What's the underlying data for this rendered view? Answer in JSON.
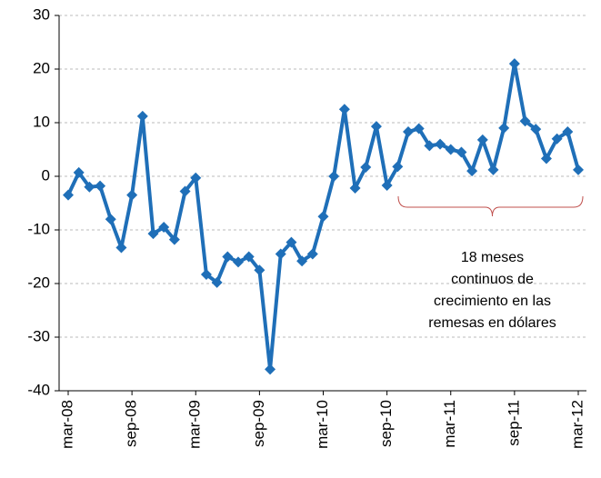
{
  "chart_data": {
    "type": "line",
    "categories": [
      "mar-08",
      null,
      null,
      null,
      null,
      null,
      "sep-08",
      null,
      null,
      null,
      null,
      null,
      "mar-09",
      null,
      null,
      null,
      null,
      null,
      "sep-09",
      null,
      null,
      null,
      null,
      null,
      "mar-10",
      null,
      null,
      null,
      null,
      null,
      "sep-10",
      null,
      null,
      null,
      null,
      null,
      "mar-11",
      null,
      null,
      null,
      null,
      null,
      "sep-11",
      null,
      null,
      null,
      null,
      null,
      "mar-12"
    ],
    "series": [
      {
        "name": null,
        "color": "#1f6fb8",
        "values": [
          -3.5,
          0.7,
          -2,
          -1.8,
          -8,
          -13.3,
          -3.5,
          11.2,
          -10.7,
          -9.5,
          -11.8,
          -2.8,
          -0.3,
          -18.3,
          -19.8,
          -15,
          -16,
          -15,
          -17.5,
          -36,
          -14.5,
          -12.3,
          -15.8,
          -14.5,
          -7.5,
          0,
          12.5,
          -2.2,
          1.7,
          9.3,
          -1.7,
          1.8,
          8.3,
          8.9,
          5.7,
          6,
          5,
          4.5,
          1,
          6.8,
          1.2,
          9,
          21,
          10.3,
          8.8,
          3.3,
          7,
          8.3,
          1.2
        ]
      }
    ],
    "ylim": [
      -40,
      30
    ],
    "yticks": [
      -40,
      -30,
      -20,
      -10,
      0,
      10,
      20,
      30
    ],
    "grid": true,
    "annotation": [
      "18 meses",
      "continuos de",
      "crecimiento en las",
      "remesas en dólares"
    ]
  }
}
